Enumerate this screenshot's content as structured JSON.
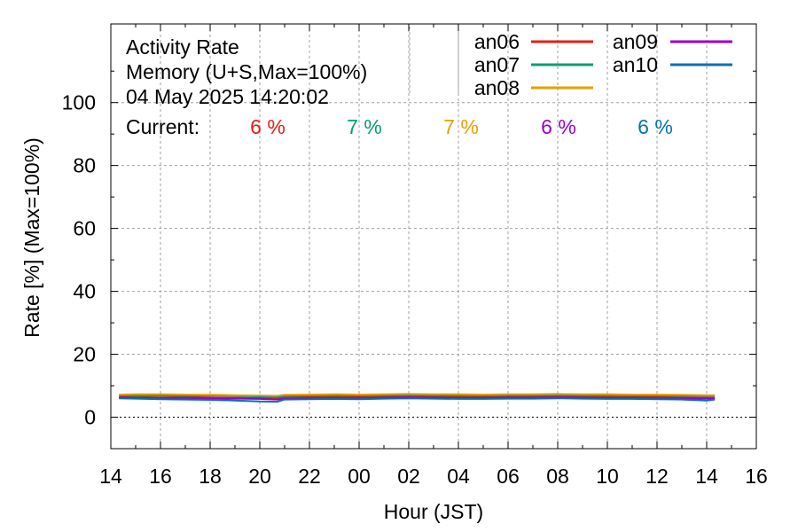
{
  "chart_data": {
    "type": "line",
    "title_lines": [
      "Activity Rate",
      "Memory (U+S,Max=100%)",
      "04 May 2025 14:20:02"
    ],
    "current_label": "Current:",
    "xlabel": "Hour (JST)",
    "ylabel": "Rate [%]  (Max=100%)",
    "xlim": [
      14,
      40
    ],
    "ylim": [
      -10,
      125
    ],
    "x_ticks": [
      14,
      16,
      18,
      20,
      22,
      24,
      26,
      28,
      30,
      32,
      34,
      36,
      38,
      40
    ],
    "x_tick_labels": [
      "14",
      "16",
      "18",
      "20",
      "22",
      "00",
      "02",
      "04",
      "06",
      "08",
      "10",
      "12",
      "14",
      "16"
    ],
    "y_ticks": [
      0,
      20,
      40,
      60,
      80,
      100
    ],
    "y_tick_labels": [
      "0",
      "20",
      "40",
      "60",
      "80",
      "100"
    ],
    "grid": true,
    "legend_position": "top-right",
    "x": [
      14.33,
      15,
      16,
      17,
      18,
      19,
      20,
      20.7,
      21,
      22,
      23,
      24,
      25,
      26,
      27,
      28,
      29,
      30,
      31,
      32,
      33,
      34,
      35,
      36,
      37,
      38,
      38.33
    ],
    "series": [
      {
        "name": "an06",
        "color": "#e51e10",
        "current": "6 %",
        "values": [
          6.5,
          6.4,
          6.3,
          6.4,
          6.3,
          6.2,
          6.1,
          6.0,
          6.3,
          6.4,
          6.5,
          6.4,
          6.5,
          6.6,
          6.5,
          6.5,
          6.4,
          6.5,
          6.5,
          6.6,
          6.5,
          6.5,
          6.4,
          6.4,
          6.3,
          6.2,
          6.2
        ]
      },
      {
        "name": "an07",
        "color": "#009e73",
        "current": "7 %",
        "values": [
          7.0,
          6.8,
          6.9,
          6.8,
          6.9,
          6.8,
          6.6,
          6.5,
          6.8,
          6.9,
          7.0,
          6.9,
          7.0,
          7.1,
          7.0,
          7.0,
          6.9,
          7.0,
          7.0,
          7.1,
          7.0,
          7.0,
          6.9,
          6.9,
          6.8,
          6.8,
          6.8
        ]
      },
      {
        "name": "an08",
        "color": "#e69f00",
        "current": "7 %",
        "values": [
          7.2,
          7.3,
          7.3,
          7.2,
          7.1,
          7.0,
          6.9,
          6.8,
          7.1,
          7.2,
          7.3,
          7.2,
          7.3,
          7.4,
          7.3,
          7.3,
          7.2,
          7.3,
          7.3,
          7.4,
          7.3,
          7.3,
          7.2,
          7.2,
          7.1,
          7.0,
          7.0
        ]
      },
      {
        "name": "an09",
        "color": "#9400d3",
        "current": "6 %",
        "values": [
          6.2,
          6.1,
          6.0,
          6.1,
          6.0,
          5.9,
          5.8,
          5.6,
          5.9,
          6.0,
          6.1,
          6.0,
          6.2,
          6.3,
          6.2,
          6.1,
          6.1,
          6.2,
          6.2,
          6.3,
          6.2,
          6.1,
          6.1,
          6.0,
          6.0,
          5.9,
          5.9
        ]
      },
      {
        "name": "an10",
        "color": "#0072b2",
        "current": "6 %",
        "values": [
          6.0,
          5.9,
          5.7,
          5.6,
          5.5,
          5.3,
          5.0,
          4.9,
          5.6,
          5.7,
          5.8,
          5.7,
          5.9,
          6.0,
          5.9,
          5.8,
          5.8,
          5.9,
          5.9,
          6.0,
          5.9,
          5.8,
          5.8,
          5.7,
          5.6,
          5.3,
          5.6
        ]
      }
    ]
  }
}
